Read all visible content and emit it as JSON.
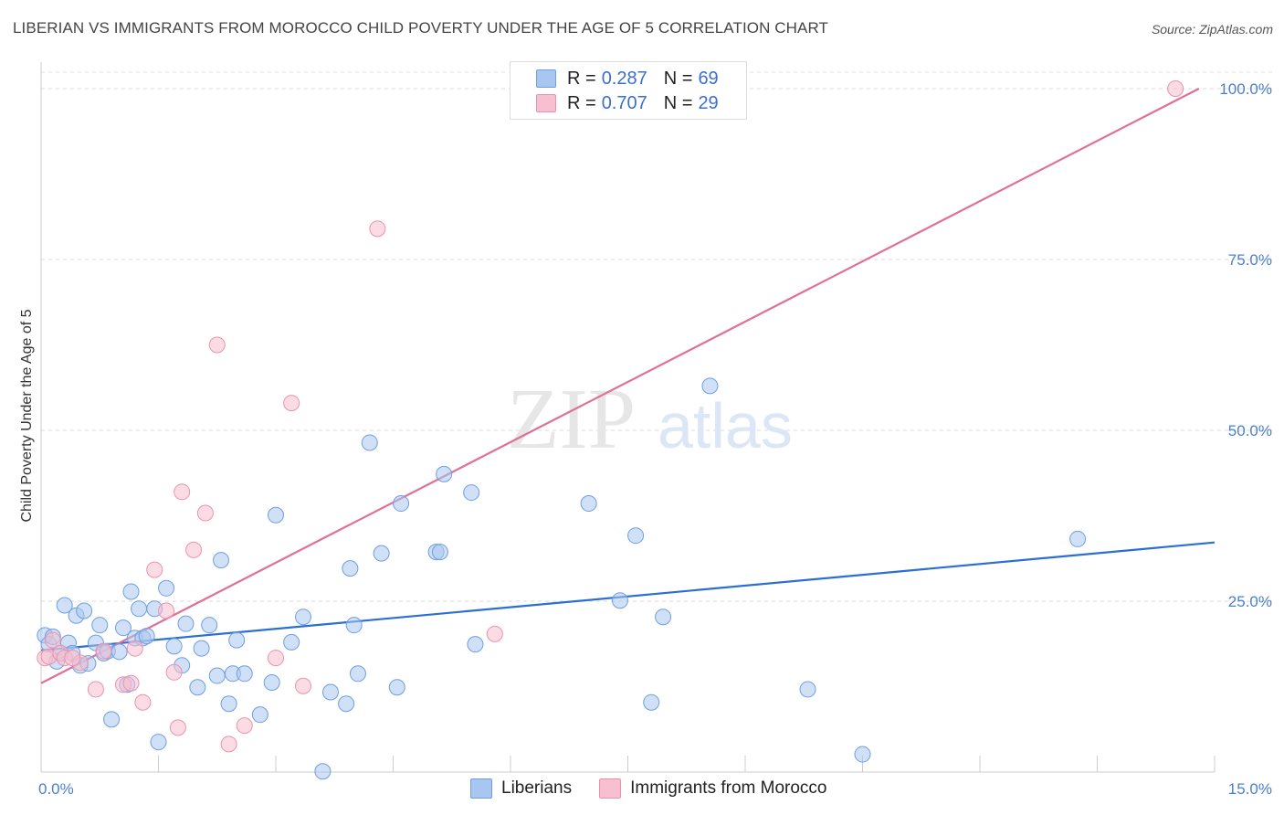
{
  "title": "LIBERIAN VS IMMIGRANTS FROM MOROCCO CHILD POVERTY UNDER THE AGE OF 5 CORRELATION CHART",
  "source": "Source: ZipAtlas.com",
  "watermark": {
    "zip": "ZIP",
    "atlas": "atlas"
  },
  "legend": {
    "r_label": "R =",
    "n_label": "N =",
    "series": [
      {
        "r": "0.287",
        "n": "69"
      },
      {
        "r": "0.707",
        "n": "29"
      }
    ]
  },
  "bottom_legend": [
    "Liberians",
    "Immigrants from Morocco"
  ],
  "chart_data": {
    "type": "scatter",
    "title": "LIBERIAN VS IMMIGRANTS FROM MOROCCO CHILD POVERTY UNDER THE AGE OF 5 CORRELATION CHART",
    "xlabel": "",
    "ylabel": "Child Poverty Under the Age of 5",
    "xlim": [
      0,
      15
    ],
    "ylim": [
      0,
      100
    ],
    "x_tick_labels": [
      "0.0%",
      "15.0%"
    ],
    "y_ticks": [
      25,
      50,
      75,
      100
    ],
    "y_tick_labels": [
      "25.0%",
      "50.0%",
      "75.0%",
      "100.0%"
    ],
    "grid": true,
    "legend_position": "top-center",
    "colors": {
      "liberians_fill": "#a9c6f0",
      "liberians_stroke": "#6f9fe0",
      "liberians_line": "#2a6fd1",
      "morocco_fill": "#f7bfd0",
      "morocco_stroke": "#ea93ae",
      "morocco_line": "#e06f99"
    },
    "series": [
      {
        "name": "Liberians",
        "trend": {
          "x": [
            0,
            15
          ],
          "y": [
            17.8,
            33.6
          ]
        },
        "points": [
          [
            0.05,
            20.0
          ],
          [
            0.1,
            18.7
          ],
          [
            0.15,
            19.8
          ],
          [
            0.2,
            16.2
          ],
          [
            0.25,
            17.4
          ],
          [
            0.3,
            24.4
          ],
          [
            0.35,
            18.9
          ],
          [
            0.4,
            17.4
          ],
          [
            0.45,
            22.9
          ],
          [
            0.5,
            15.6
          ],
          [
            0.55,
            23.6
          ],
          [
            0.6,
            15.9
          ],
          [
            0.7,
            18.9
          ],
          [
            0.75,
            21.5
          ],
          [
            0.8,
            17.4
          ],
          [
            0.85,
            17.7
          ],
          [
            0.9,
            7.7
          ],
          [
            1.0,
            17.6
          ],
          [
            1.05,
            21.1
          ],
          [
            1.1,
            12.8
          ],
          [
            1.15,
            26.4
          ],
          [
            1.2,
            19.6
          ],
          [
            1.25,
            23.9
          ],
          [
            1.3,
            19.6
          ],
          [
            1.35,
            19.9
          ],
          [
            1.45,
            23.9
          ],
          [
            1.5,
            4.4
          ],
          [
            1.6,
            26.9
          ],
          [
            1.7,
            18.4
          ],
          [
            1.8,
            15.6
          ],
          [
            1.85,
            21.7
          ],
          [
            2.0,
            12.4
          ],
          [
            2.05,
            18.1
          ],
          [
            2.15,
            21.5
          ],
          [
            2.25,
            14.1
          ],
          [
            2.3,
            31.0
          ],
          [
            2.4,
            10.0
          ],
          [
            2.45,
            14.4
          ],
          [
            2.5,
            19.3
          ],
          [
            2.6,
            14.4
          ],
          [
            2.8,
            8.4
          ],
          [
            2.95,
            13.1
          ],
          [
            3.0,
            37.6
          ],
          [
            3.2,
            19.0
          ],
          [
            3.35,
            22.7
          ],
          [
            3.6,
            0.1
          ],
          [
            3.7,
            11.7
          ],
          [
            3.9,
            10.0
          ],
          [
            3.95,
            29.8
          ],
          [
            4.0,
            21.5
          ],
          [
            4.05,
            14.4
          ],
          [
            4.2,
            48.2
          ],
          [
            4.35,
            32.0
          ],
          [
            4.55,
            12.4
          ],
          [
            4.6,
            39.3
          ],
          [
            5.05,
            32.2
          ],
          [
            5.1,
            32.2
          ],
          [
            5.15,
            43.6
          ],
          [
            5.5,
            40.9
          ],
          [
            5.55,
            18.7
          ],
          [
            7.0,
            39.3
          ],
          [
            7.4,
            25.1
          ],
          [
            7.6,
            34.6
          ],
          [
            7.8,
            10.2
          ],
          [
            7.95,
            22.7
          ],
          [
            8.55,
            56.5
          ],
          [
            9.8,
            12.1
          ],
          [
            10.5,
            2.6
          ],
          [
            13.25,
            34.1
          ]
        ]
      },
      {
        "name": "Immigrants from Morocco",
        "trend": {
          "x": [
            0,
            14.8
          ],
          "y": [
            13.0,
            100.0
          ]
        },
        "points": [
          [
            0.05,
            16.7
          ],
          [
            0.1,
            16.9
          ],
          [
            0.15,
            19.3
          ],
          [
            0.25,
            17.4
          ],
          [
            0.3,
            16.7
          ],
          [
            0.5,
            16.0
          ],
          [
            0.7,
            12.1
          ],
          [
            0.8,
            17.7
          ],
          [
            1.05,
            12.8
          ],
          [
            1.15,
            13.0
          ],
          [
            1.2,
            18.1
          ],
          [
            1.3,
            10.2
          ],
          [
            1.45,
            29.6
          ],
          [
            1.6,
            23.6
          ],
          [
            1.7,
            14.6
          ],
          [
            1.75,
            6.5
          ],
          [
            1.8,
            41.0
          ],
          [
            1.95,
            32.5
          ],
          [
            2.1,
            37.9
          ],
          [
            2.25,
            62.5
          ],
          [
            2.4,
            4.1
          ],
          [
            2.6,
            6.8
          ],
          [
            3.0,
            16.7
          ],
          [
            3.2,
            54.0
          ],
          [
            3.35,
            12.6
          ],
          [
            4.3,
            79.5
          ],
          [
            5.8,
            20.2
          ],
          [
            14.5,
            100.0
          ],
          [
            0.4,
            16.7
          ]
        ]
      }
    ]
  }
}
